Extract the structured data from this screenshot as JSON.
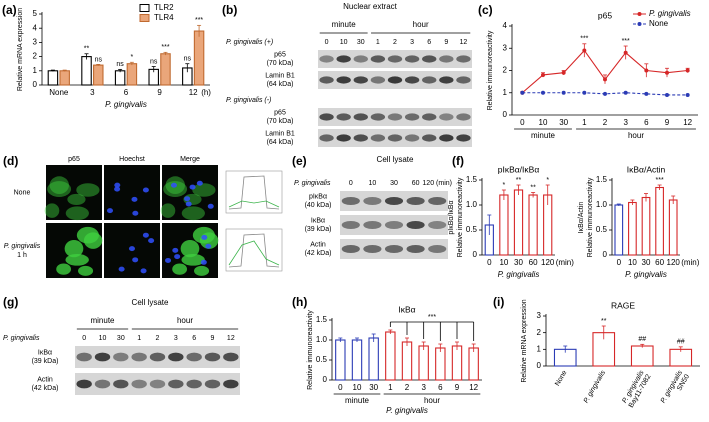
{
  "chart_data": [
    {
      "type": "bar",
      "panel": "(a)",
      "ylabel": "Relative mRNA expression",
      "xlabel": "P. gingivalis",
      "x_unit": "(h)",
      "categories": [
        "None",
        "3",
        "6",
        "9",
        "12"
      ],
      "ylim": [
        0,
        5
      ],
      "yticks": [
        0,
        1,
        2,
        3,
        4,
        5
      ],
      "legend": "upper right",
      "series": [
        {
          "name": "TLR2",
          "color": "#000000",
          "fill": "#ffffff",
          "values": [
            1.0,
            2.0,
            1.0,
            1.1,
            1.2
          ],
          "errors": [
            0.05,
            0.2,
            0.1,
            0.2,
            0.3
          ],
          "annotations": [
            null,
            "**",
            "ns",
            "ns",
            "ns"
          ]
        },
        {
          "name": "TLR4",
          "color": "#c06a30",
          "fill": "#eaa67a",
          "values": [
            1.0,
            1.4,
            1.5,
            2.2,
            3.8
          ],
          "errors": [
            0.05,
            0.05,
            0.1,
            0.1,
            0.4
          ],
          "annotations": [
            null,
            "ns",
            "*",
            "***",
            "***"
          ]
        }
      ]
    },
    {
      "type": "line",
      "panel": "(c)",
      "title": "p65",
      "ylabel": "Relative immunoreactivity",
      "categories": [
        "0",
        "10",
        "30",
        "1",
        "2",
        "3",
        "6",
        "9",
        "12"
      ],
      "category_groups": [
        "minute",
        "minute",
        "minute",
        "hour",
        "hour",
        "hour",
        "hour",
        "hour",
        "hour"
      ],
      "ylim": [
        0,
        4
      ],
      "yticks": [
        0,
        1,
        2,
        3,
        4
      ],
      "legend": "upper right",
      "series": [
        {
          "name": "P. gingivalis",
          "italic": true,
          "color": "#d62728",
          "values": [
            1.0,
            1.8,
            1.9,
            2.9,
            1.6,
            2.8,
            2.0,
            1.9,
            2.0
          ],
          "errors": [
            0.05,
            0.1,
            0.1,
            0.3,
            0.2,
            0.3,
            0.3,
            0.2,
            0.1
          ],
          "annotations": [
            null,
            null,
            null,
            "***",
            null,
            "***",
            null,
            null,
            null
          ]
        },
        {
          "name": "None",
          "color": "#2b3bb5",
          "dash": true,
          "values": [
            1.0,
            1.0,
            1.0,
            1.0,
            0.95,
            1.0,
            0.95,
            0.9,
            0.9
          ]
        }
      ]
    },
    {
      "type": "bar",
      "panel": "(f)",
      "title": "pIκBα/IκBα",
      "ylabel": [
        "pIκBα/IκBα",
        "Relative immunoreactivity"
      ],
      "xlabel": "P. gingivalis",
      "x_unit": "(min)",
      "categories": [
        "0",
        "10",
        "30",
        "60",
        "120"
      ],
      "ylim": [
        0,
        1.5
      ],
      "yticks": [
        0,
        0.5,
        {
          "value": 1,
          "label": "1.0"
        },
        1.5
      ],
      "series": [
        {
          "colors": [
            "#2b3bb5",
            "#d62728",
            "#d62728",
            "#d62728",
            "#d62728"
          ],
          "fill": "#ffffff",
          "values": [
            0.6,
            1.2,
            1.3,
            1.2,
            1.2
          ],
          "errors": [
            0.2,
            0.1,
            0.1,
            0.05,
            0.2
          ],
          "annotations": [
            null,
            "*",
            "**",
            "**",
            "*"
          ]
        }
      ]
    },
    {
      "type": "bar",
      "title": "IκBα/Actin",
      "ylabel": [
        "IκBα/Actin",
        "Relative immunoreactivity"
      ],
      "xlabel": "P. gingivalis",
      "x_unit": "(min)",
      "categories": [
        "0",
        "10",
        "30",
        "60",
        "120"
      ],
      "ylim": [
        0,
        1.5
      ],
      "yticks": [
        0,
        0.5,
        {
          "value": 1,
          "label": "1.0"
        },
        1.5
      ],
      "series": [
        {
          "colors": [
            "#2b3bb5",
            "#d62728",
            "#d62728",
            "#d62728",
            "#d62728"
          ],
          "fill": "#ffffff",
          "values": [
            1.0,
            1.05,
            1.15,
            1.35,
            1.1
          ],
          "errors": [
            0.02,
            0.05,
            0.08,
            0.05,
            0.08
          ],
          "annotations": [
            null,
            null,
            null,
            "***",
            null
          ]
        }
      ]
    },
    {
      "type": "bar",
      "panel": "(h)",
      "title": "IκBα",
      "ylabel": "Relative immunoreactivity",
      "xlabel": "P. gingivalis",
      "categories": [
        "0",
        "10",
        "30",
        "1",
        "2",
        "3",
        "6",
        "9",
        "12"
      ],
      "category_groups": [
        "minute",
        "minute",
        "minute",
        "hour",
        "hour",
        "hour",
        "hour",
        "hour",
        "hour"
      ],
      "ylim": [
        0,
        1.5
      ],
      "yticks": [
        0,
        0.5,
        {
          "value": 1,
          "label": "1.0"
        },
        1.5
      ],
      "bracket_label": "***",
      "series": [
        {
          "colors": [
            "#2b3bb5",
            "#2b3bb5",
            "#2b3bb5",
            "#d62728",
            "#d62728",
            "#d62728",
            "#d62728",
            "#d62728",
            "#d62728"
          ],
          "fill": "#ffffff",
          "values": [
            1.0,
            1.0,
            1.05,
            1.2,
            0.95,
            0.85,
            0.8,
            0.85,
            0.8
          ],
          "errors": [
            0.05,
            0.05,
            0.1,
            0.05,
            0.1,
            0.1,
            0.1,
            0.1,
            0.1
          ]
        }
      ]
    },
    {
      "type": "bar",
      "panel": "(i)",
      "title": "RAGE",
      "ylabel": "Relative mRNA expression",
      "rotate_labels": true,
      "categories": [
        [
          "None"
        ],
        [
          "P. gingivalis"
        ],
        [
          "P. gingivalis",
          "Bay11-7082"
        ],
        [
          "P. gingivalis",
          "SN50"
        ]
      ],
      "ylim": [
        0,
        3
      ],
      "yticks": [
        0,
        1,
        2,
        3
      ],
      "series": [
        {
          "colors": [
            "#2b3bb5",
            "#d62728",
            "#d62728",
            "#d62728"
          ],
          "fill": "#ffffff",
          "values": [
            1.0,
            2.0,
            1.2,
            1.0
          ],
          "errors": [
            0.2,
            0.4,
            0.1,
            0.15
          ],
          "annotations": [
            null,
            "**",
            "##",
            "##"
          ]
        }
      ]
    }
  ],
  "blots": [
    {
      "panel": "(b)",
      "title": "Nuclear extract",
      "time_groups": [
        "minute",
        "hour"
      ],
      "sections": [
        {
          "condition": "P. gingivalis (+)",
          "lanes": [
            "0",
            "10",
            "30",
            "1",
            "2",
            "3",
            "6",
            "9",
            "12"
          ],
          "bands": [
            [
              "p65",
              "(70 kDa)"
            ],
            [
              "Lamin B1",
              "(64 kDa)"
            ]
          ]
        },
        {
          "condition": "P. gingivalis (-)",
          "bands": [
            [
              "p65",
              "(70 kDa)"
            ],
            [
              "Lamin B1",
              "(64 kDa)"
            ]
          ]
        }
      ]
    },
    {
      "panel": "(e)",
      "title": "Cell lysate",
      "sections": [
        {
          "condition": "P. gingivalis",
          "lanes": [
            "0",
            "10",
            "30",
            "60",
            "120 (min)"
          ],
          "bands": [
            [
              "pIκBα",
              "(40 kDa)"
            ],
            [
              "IκBα",
              "(39 kDa)"
            ],
            [
              "Actin",
              "(42 kDa)"
            ]
          ]
        }
      ]
    },
    {
      "panel": "(g)",
      "title": "Cell lysate",
      "time_groups": [
        "minute",
        "hour"
      ],
      "sections": [
        {
          "condition": "P. gingivalis",
          "lanes": [
            "0",
            "10",
            "30",
            "1",
            "2",
            "3",
            "6",
            "9",
            "12"
          ],
          "bands": [
            [
              "IκBα",
              "(39 kDa)"
            ],
            [
              "Actin",
              "(42 kDa)"
            ]
          ]
        }
      ]
    }
  ],
  "images": {
    "panel": "(d)",
    "columns": [
      "p65",
      "Hoechst",
      "Merge"
    ],
    "rows": [
      [
        "None"
      ],
      [
        "P. gingivalis",
        "1 h"
      ]
    ]
  }
}
